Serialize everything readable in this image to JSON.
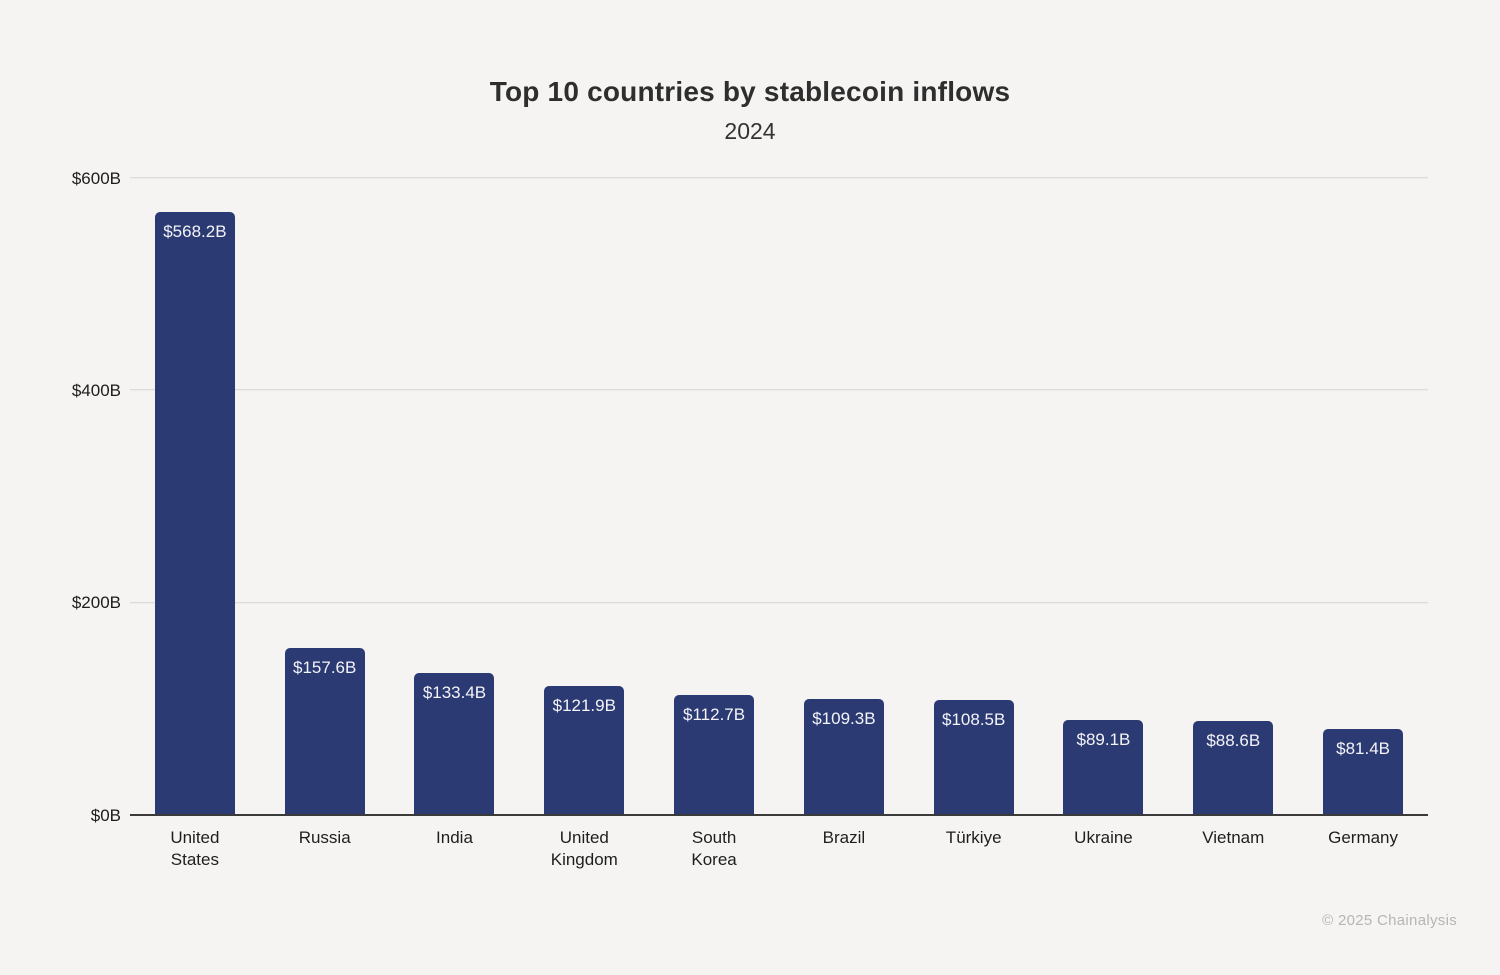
{
  "page": {
    "background": "#f5f4f2",
    "footer": "© 2025 Chainalysis"
  },
  "chart_data": {
    "type": "bar",
    "title": "Top 10 countries by stablecoin inflows",
    "subtitle": "2024",
    "categories": [
      "United\nStates",
      "Russia",
      "India",
      "United\nKingdom",
      "South Korea",
      "Brazil",
      "Türkiye",
      "Ukraine",
      "Vietnam",
      "Germany"
    ],
    "values": [
      568.2,
      157.6,
      133.4,
      121.9,
      112.7,
      109.3,
      108.5,
      89.1,
      88.6,
      81.4
    ],
    "value_labels": [
      "$568.2B",
      "$157.6B",
      "$133.4B",
      "$121.9B",
      "$112.7B",
      "$109.3B",
      "$108.5B",
      "$89.1B",
      "$88.6B",
      "$81.4B"
    ],
    "xlabel": "",
    "ylabel": "",
    "ylim": [
      0,
      600
    ],
    "yticks": [
      0,
      200,
      400,
      600
    ],
    "ytick_labels": [
      "$0B",
      "$200B",
      "$400B",
      "$600B"
    ],
    "grid": "horizontal-on",
    "legend": "none",
    "bar_color": "#2b3a72",
    "value_label_color": "#f4f4f8",
    "gridline_color": "#dcdcd9",
    "axis_line_color": "#3a3a3a"
  }
}
